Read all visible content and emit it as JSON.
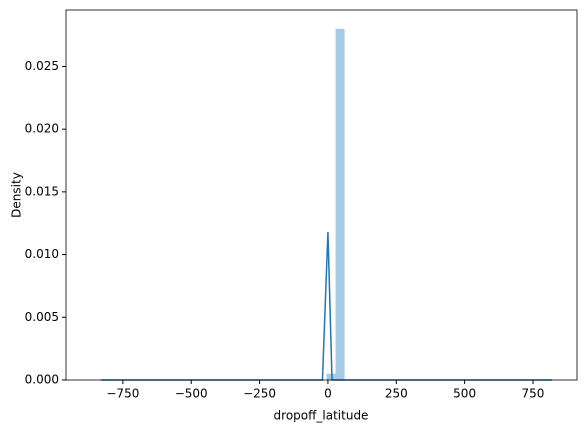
{
  "chart_data": {
    "type": "histogram",
    "xlabel": "dropoff_latitude",
    "ylabel": "Density",
    "bins": [
      -830,
      -797,
      -764,
      -731,
      -698,
      -665,
      -632,
      -599,
      -566,
      -533,
      -500,
      -467,
      -434,
      -401,
      -368,
      -335,
      -302,
      -269,
      -236,
      -203,
      -170,
      -137,
      -104,
      -71,
      -38,
      -5,
      28,
      61,
      94,
      127,
      160,
      193,
      226,
      259,
      292,
      325,
      358,
      391,
      424,
      457,
      490,
      523,
      556,
      589,
      622,
      655,
      688,
      721,
      754,
      787,
      820
    ],
    "counts": [
      0,
      0,
      0,
      0,
      0,
      0,
      0,
      0,
      0,
      0,
      0,
      0,
      0,
      0,
      0,
      0,
      0,
      0,
      0,
      0,
      0,
      0,
      0,
      0,
      0,
      0.0005,
      0.028,
      0,
      0,
      0,
      0,
      0,
      0,
      0,
      0,
      0,
      0,
      0,
      0,
      0,
      0,
      0,
      0,
      0,
      0,
      0,
      0,
      0,
      0,
      0
    ],
    "color": "#a6cae3",
    "kde": {
      "color": "#1f77b4",
      "x": [
        -830,
        -20,
        0,
        15,
        820
      ],
      "values": [
        0,
        0,
        0.0118,
        0,
        0
      ]
    },
    "xlim": [
      -958,
      911
    ],
    "ylim": [
      0,
      0.0295
    ],
    "xticks": [
      {
        "value": -750,
        "label": "−750"
      },
      {
        "value": -500,
        "label": "−500"
      },
      {
        "value": -250,
        "label": "−250"
      },
      0,
      250,
      500,
      750
    ],
    "yticks": [
      {
        "value": 0,
        "label": "0.000"
      },
      {
        "value": 0.005,
        "label": "0.005"
      },
      {
        "value": 0.01,
        "label": "0.010"
      },
      {
        "value": 0.015,
        "label": "0.015"
      },
      {
        "value": 0.02,
        "label": "0.020"
      },
      {
        "value": 0.025,
        "label": "0.025"
      }
    ]
  }
}
